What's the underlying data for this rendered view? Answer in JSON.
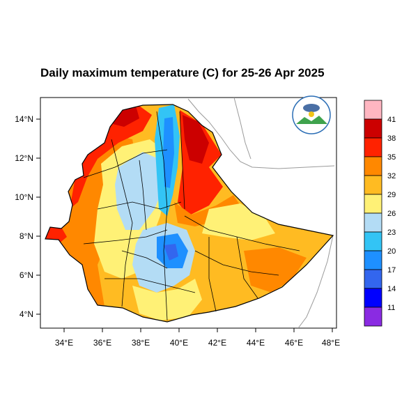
{
  "title": "Daily maximum temperature (C) for 25-26 Apr 2025",
  "map": {
    "region": "Ethiopia",
    "x_ticks": [
      "34°E",
      "36°E",
      "38°E",
      "40°E",
      "42°E",
      "44°E",
      "46°E",
      "48°E"
    ],
    "y_ticks": [
      "14°N",
      "12°N",
      "10°N",
      "8°N",
      "6°N",
      "4°N"
    ],
    "logo_icon": "meteorology-agency-logo-icon"
  },
  "colorbar": {
    "labels": [
      "41",
      "38",
      "35",
      "32",
      "29",
      "26",
      "23",
      "20",
      "17",
      "14",
      "11"
    ],
    "colors": [
      "#ffb6c1",
      "#cc0000",
      "#ff2200",
      "#ff8800",
      "#ffbb22",
      "#fff176",
      "#b3dcf5",
      "#33c4f5",
      "#1e90ff",
      "#3366ee",
      "#0000ff",
      "#8a2be2"
    ]
  }
}
